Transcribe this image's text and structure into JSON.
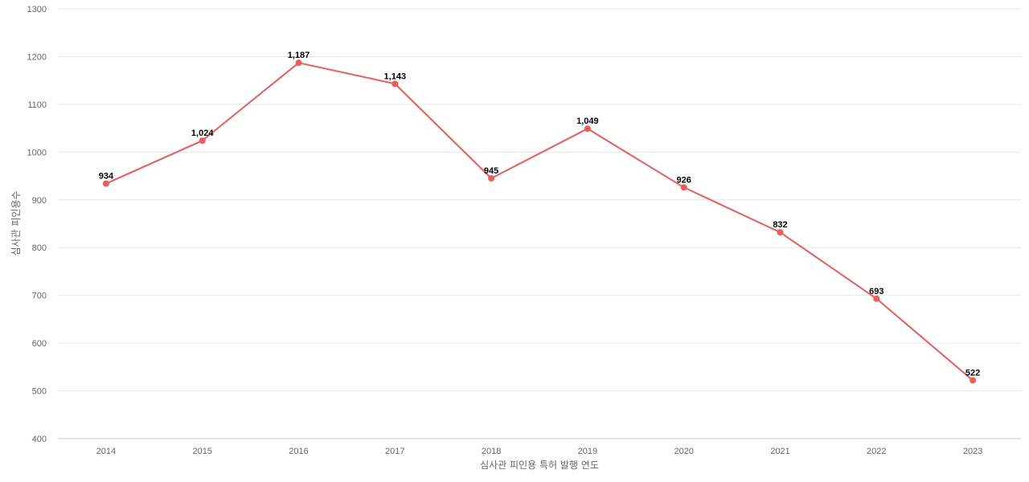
{
  "chart_data": {
    "type": "line",
    "categories": [
      "2014",
      "2015",
      "2016",
      "2017",
      "2018",
      "2019",
      "2020",
      "2021",
      "2022",
      "2023"
    ],
    "series": [
      {
        "values": [
          934,
          1024,
          1187,
          1143,
          945,
          1049,
          926,
          832,
          693,
          522
        ],
        "value_labels": [
          "934",
          "1,024",
          "1,187",
          "1,143",
          "945",
          "1,049",
          "926",
          "832",
          "693",
          "522"
        ],
        "color": "#ef5a5a"
      }
    ],
    "xlabel": "심사관 피인용 특허 발행 연도",
    "ylabel": "심사관 피인용수",
    "ylim": [
      400,
      1300
    ],
    "yticks": [
      "400",
      "500",
      "600",
      "700",
      "800",
      "900",
      "1000",
      "1100",
      "1200",
      "1300"
    ],
    "grid": true,
    "legend": "none"
  }
}
